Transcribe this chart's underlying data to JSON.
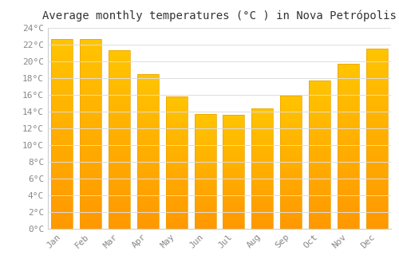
{
  "title": "Average monthly temperatures (°C ) in Nova Petrópolis",
  "months": [
    "Jan",
    "Feb",
    "Mar",
    "Apr",
    "May",
    "Jun",
    "Jul",
    "Aug",
    "Sep",
    "Oct",
    "Nov",
    "Dec"
  ],
  "values": [
    22.7,
    22.7,
    21.3,
    18.5,
    15.8,
    13.7,
    13.6,
    14.4,
    15.9,
    17.7,
    19.7,
    21.5
  ],
  "bar_color_top": "#FFB300",
  "bar_color_bottom": "#FF9800",
  "bar_edge_color": "#E8A000",
  "background_color": "#FFFFFF",
  "grid_color": "#DDDDDD",
  "ylim": [
    0,
    24
  ],
  "yticks": [
    0,
    2,
    4,
    6,
    8,
    10,
    12,
    14,
    16,
    18,
    20,
    22,
    24
  ],
  "title_fontsize": 10,
  "tick_fontsize": 8,
  "tick_label_color": "#888888",
  "title_color": "#333333"
}
